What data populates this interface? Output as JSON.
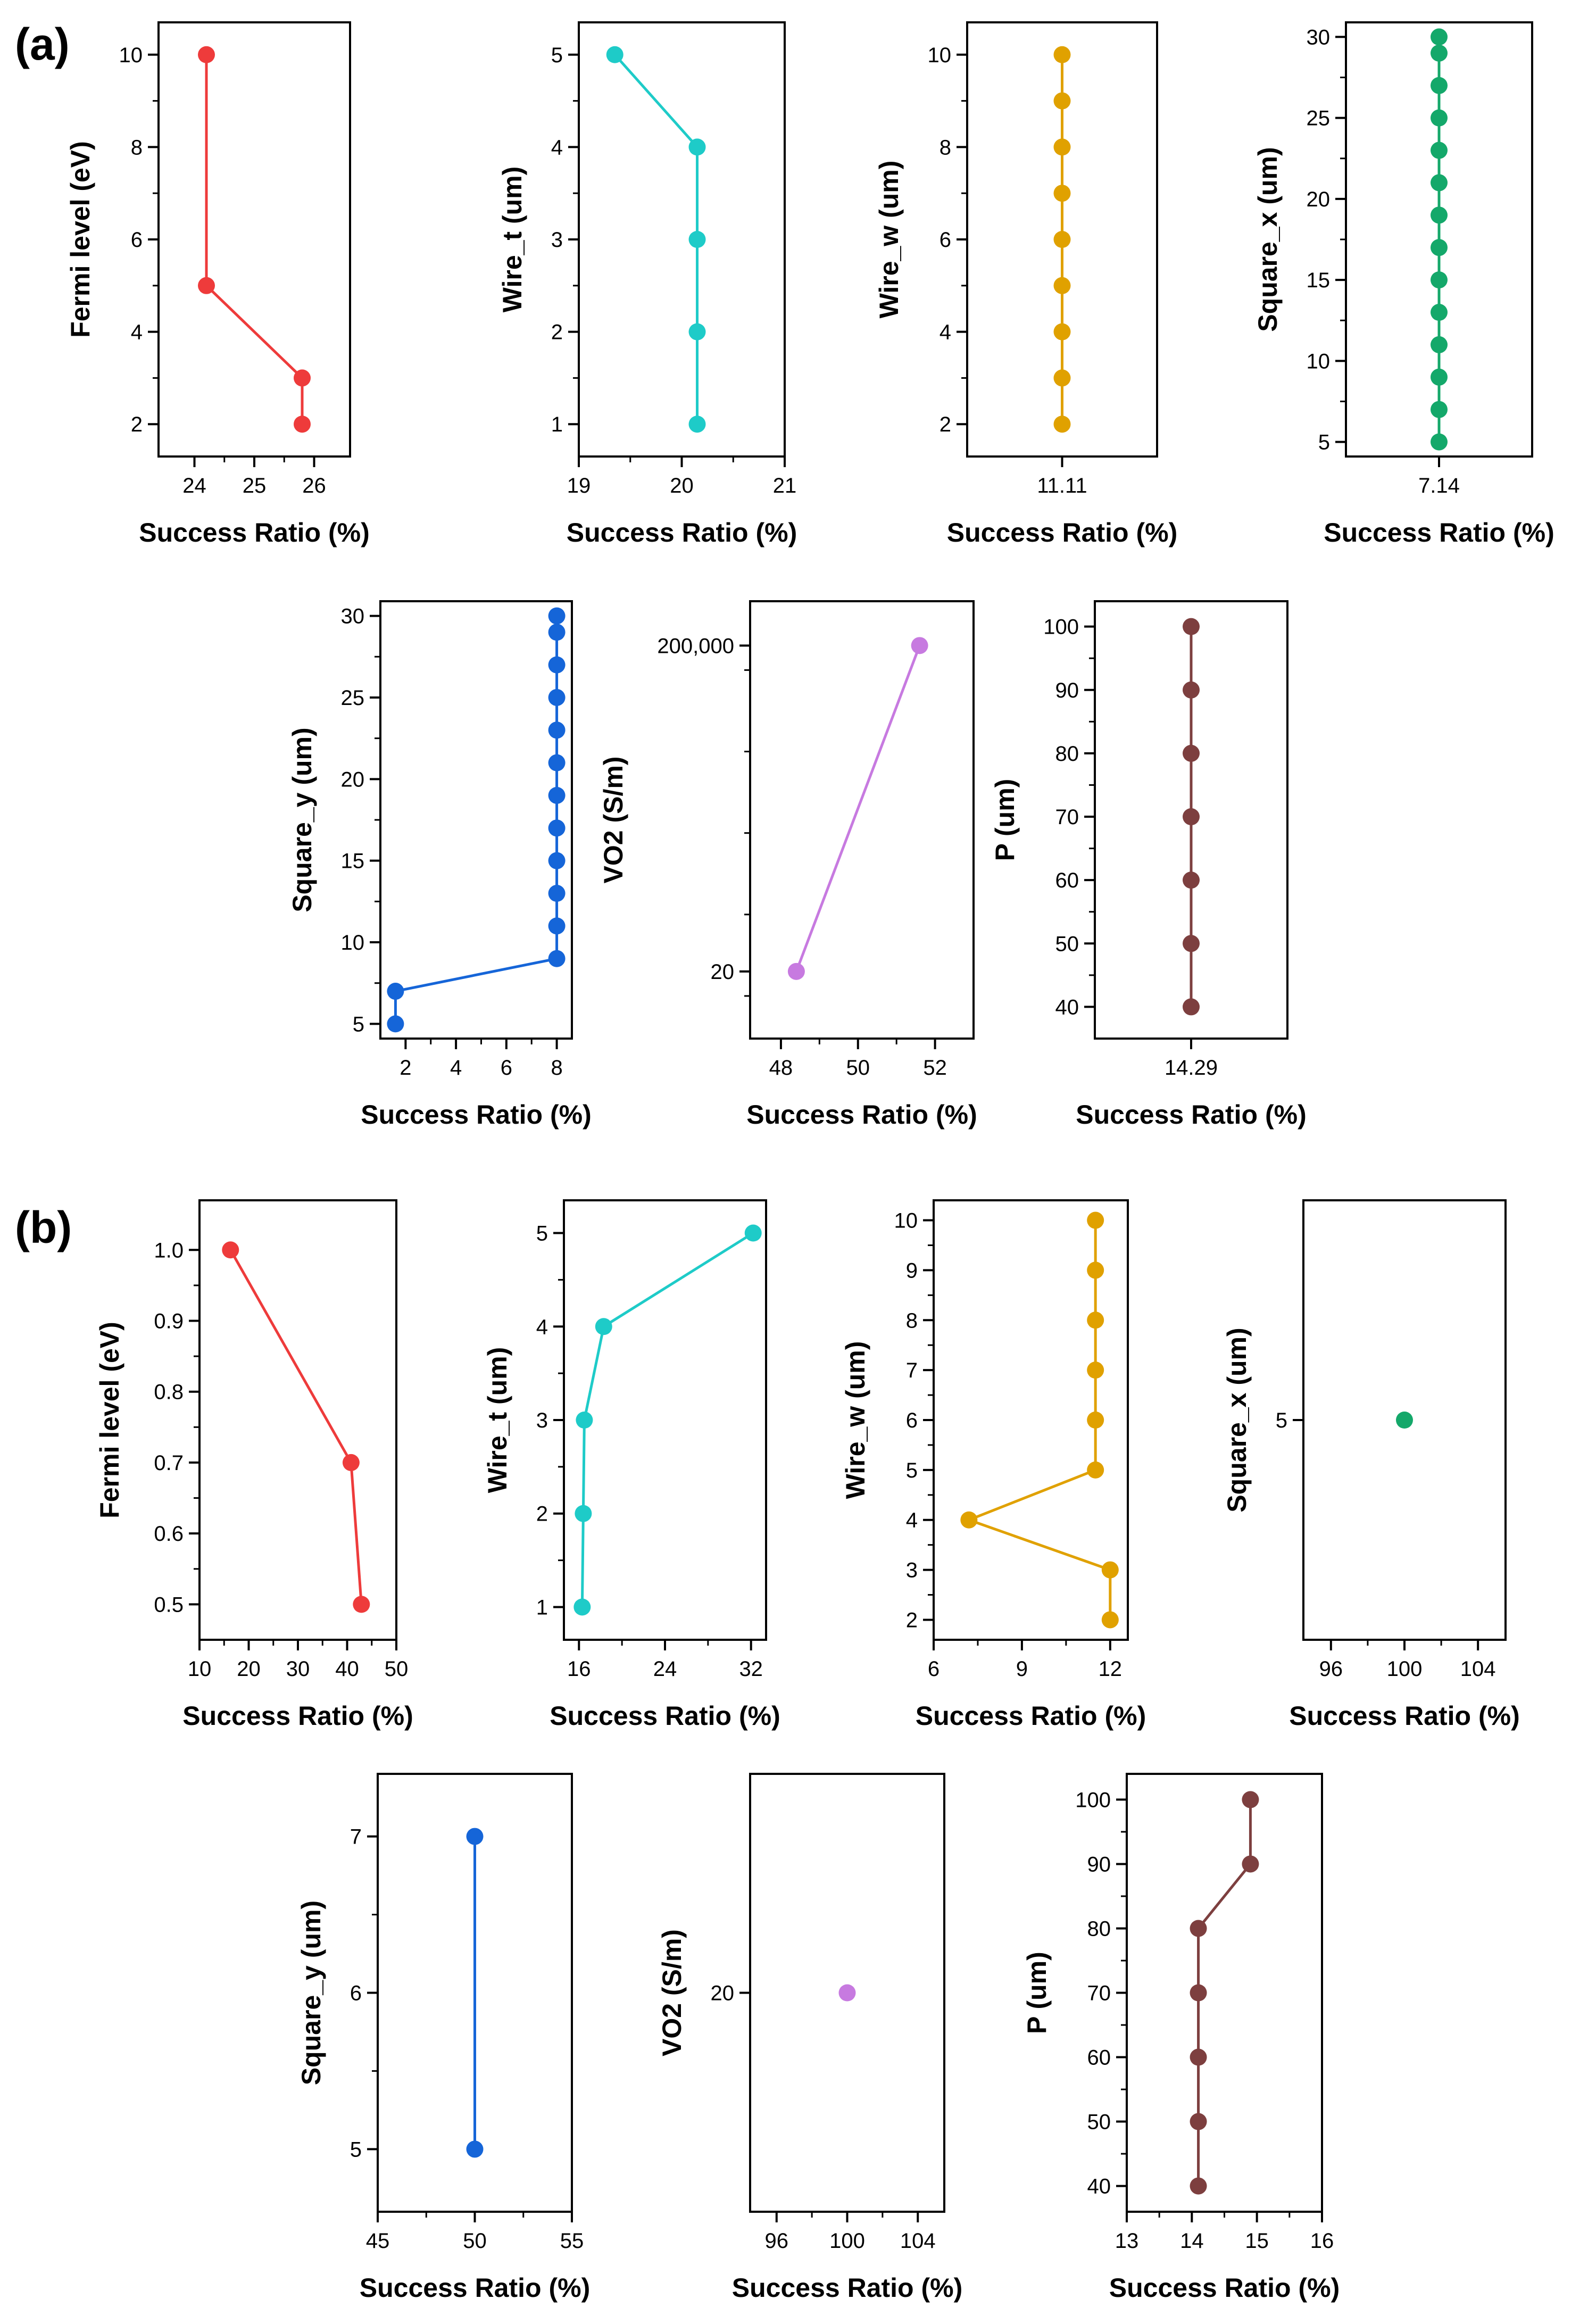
{
  "panels": [
    {
      "label": "(a)"
    },
    {
      "label": "(b)"
    }
  ],
  "chart_data": [
    {
      "type": "line",
      "panel": "(a)",
      "xlabel": "Success Ratio (%)",
      "ylabel": "Fermi level (eV)",
      "color": "#ee3b3b",
      "xlim": [
        23.4,
        26.6
      ],
      "xticks": [
        24,
        25,
        26
      ],
      "xtick_labels": [
        "24",
        "25",
        "26"
      ],
      "ylim": [
        1.3,
        10.7
      ],
      "yticks": [
        2,
        4,
        6,
        8,
        10
      ],
      "ytick_labels": [
        "2",
        "4",
        "6",
        "8",
        "10"
      ],
      "x": [
        24.2,
        24.2,
        25.8,
        25.8
      ],
      "y": [
        10,
        5,
        3,
        2
      ]
    },
    {
      "type": "line",
      "panel": "(a)",
      "xlabel": "Success Ratio (%)",
      "ylabel": "Wire_t (um)",
      "color": "#1ecbc8",
      "xlim": [
        19,
        21
      ],
      "xticks": [
        19,
        20,
        21
      ],
      "xtick_labels": [
        "19",
        "20",
        "21"
      ],
      "ylim": [
        0.65,
        5.35
      ],
      "yticks": [
        1,
        2,
        3,
        4,
        5
      ],
      "ytick_labels": [
        "1",
        "2",
        "3",
        "4",
        "5"
      ],
      "x": [
        19.35,
        20.15,
        20.15,
        20.15,
        20.15
      ],
      "y": [
        5,
        4,
        3,
        2,
        1
      ]
    },
    {
      "type": "line",
      "panel": "(a)",
      "xlabel": "Success Ratio (%)",
      "ylabel": "Wire_w (um)",
      "color": "#e0a100",
      "xlim": [
        10.11,
        12.11
      ],
      "xticks": [
        11.11
      ],
      "xtick_labels": [
        "11.11"
      ],
      "ylim": [
        1.3,
        10.7
      ],
      "yticks": [
        2,
        4,
        6,
        8,
        10
      ],
      "ytick_labels": [
        "2",
        "4",
        "6",
        "8",
        "10"
      ],
      "x": [
        11.11,
        11.11,
        11.11,
        11.11,
        11.11,
        11.11,
        11.11,
        11.11,
        11.11
      ],
      "y": [
        10,
        9,
        8,
        7,
        6,
        5,
        4,
        3,
        2
      ]
    },
    {
      "type": "line",
      "panel": "(a)",
      "xlabel": "Success Ratio (%)",
      "ylabel": "Square_x (um)",
      "color": "#14a86a",
      "xlim": [
        6.14,
        8.14
      ],
      "xticks": [
        7.14
      ],
      "xtick_labels": [
        "7.14"
      ],
      "ylim": [
        4.1,
        30.9
      ],
      "yticks": [
        5,
        10,
        15,
        20,
        25,
        30
      ],
      "ytick_labels": [
        "5",
        "10",
        "15",
        "20",
        "25",
        "30"
      ],
      "x": [
        7.14,
        7.14,
        7.14,
        7.14,
        7.14,
        7.14,
        7.14,
        7.14,
        7.14,
        7.14,
        7.14,
        7.14,
        7.14,
        7.14
      ],
      "y": [
        30,
        29,
        27,
        25,
        23,
        21,
        19,
        17,
        15,
        13,
        11,
        9,
        7,
        5
      ]
    },
    {
      "type": "line",
      "panel": "(a)",
      "xlabel": "Success Ratio (%)",
      "ylabel": "Square_y (um)",
      "color": "#1565d8",
      "xlim": [
        1.0,
        8.6
      ],
      "xticks": [
        2,
        4,
        6,
        8
      ],
      "xtick_labels": [
        "2",
        "4",
        "6",
        "8"
      ],
      "ylim": [
        4.1,
        30.9
      ],
      "yticks": [
        5,
        10,
        15,
        20,
        25,
        30
      ],
      "ytick_labels": [
        "5",
        "10",
        "15",
        "20",
        "25",
        "30"
      ],
      "x": [
        8.0,
        8.0,
        8.0,
        8.0,
        8.0,
        8.0,
        8.0,
        8.0,
        8.0,
        8.0,
        8.0,
        8.0,
        1.6,
        1.6
      ],
      "y": [
        30,
        29,
        27,
        25,
        23,
        21,
        19,
        17,
        15,
        13,
        11,
        9,
        7,
        5
      ]
    },
    {
      "type": "line",
      "panel": "(a)",
      "xlabel": "Success Ratio (%)",
      "ylabel": "VO2 (S/m)",
      "color": "#c77ae0",
      "yscale": "log",
      "xlim": [
        47.2,
        53.0
      ],
      "xticks": [
        48,
        50,
        52
      ],
      "xtick_labels": [
        "48",
        "50",
        "52"
      ],
      "ylim": [
        3.0,
        700000
      ],
      "yticks": [
        20,
        200000
      ],
      "ytick_labels": [
        "20",
        "200,000"
      ],
      "x": [
        48.4,
        51.6
      ],
      "y": [
        20,
        200000
      ]
    },
    {
      "type": "line",
      "panel": "(a)",
      "xlabel": "Success Ratio (%)",
      "ylabel": "P (um)",
      "color": "#7d3f3f",
      "xlim": [
        13.29,
        15.29
      ],
      "xticks": [
        14.29
      ],
      "xtick_labels": [
        "14.29"
      ],
      "ylim": [
        35,
        104
      ],
      "yticks": [
        40,
        50,
        60,
        70,
        80,
        90,
        100
      ],
      "ytick_labels": [
        "40",
        "50",
        "60",
        "70",
        "80",
        "90",
        "100"
      ],
      "x": [
        14.29,
        14.29,
        14.29,
        14.29,
        14.29,
        14.29,
        14.29
      ],
      "y": [
        100,
        90,
        80,
        70,
        60,
        50,
        40
      ]
    },
    {
      "type": "line",
      "panel": "(b)",
      "xlabel": "Success Ratio (%)",
      "ylabel": "Fermi level (eV)",
      "color": "#ee3b3b",
      "xlim": [
        10,
        50
      ],
      "xticks": [
        10,
        20,
        30,
        40,
        50
      ],
      "xtick_labels": [
        "10",
        "20",
        "30",
        "40",
        "50"
      ],
      "ylim": [
        0.45,
        1.07
      ],
      "yticks": [
        0.5,
        0.6,
        0.7,
        0.8,
        0.9,
        1.0
      ],
      "ytick_labels": [
        "0.5",
        "0.6",
        "0.7",
        "0.8",
        "0.9",
        "1.0"
      ],
      "x": [
        16.3,
        40.8,
        42.9
      ],
      "y": [
        1.0,
        0.7,
        0.5
      ]
    },
    {
      "type": "line",
      "panel": "(b)",
      "xlabel": "Success Ratio (%)",
      "ylabel": "Wire_t (um)",
      "color": "#1ecbc8",
      "xlim": [
        14.6,
        33.4
      ],
      "xticks": [
        16,
        24,
        32
      ],
      "xtick_labels": [
        "16",
        "24",
        "32"
      ],
      "ylim": [
        0.65,
        5.35
      ],
      "yticks": [
        1,
        2,
        3,
        4,
        5
      ],
      "ytick_labels": [
        "1",
        "2",
        "3",
        "4",
        "5"
      ],
      "x": [
        32.2,
        18.3,
        16.5,
        16.4,
        16.3
      ],
      "y": [
        5,
        4,
        3,
        2,
        1
      ]
    },
    {
      "type": "line",
      "panel": "(b)",
      "xlabel": "Success Ratio (%)",
      "ylabel": "Wire_w (um)",
      "color": "#e0a100",
      "xlim": [
        6,
        12.6
      ],
      "xticks": [
        6,
        9,
        12
      ],
      "xtick_labels": [
        "6",
        "9",
        "12"
      ],
      "ylim": [
        1.6,
        10.4
      ],
      "yticks": [
        2,
        3,
        4,
        5,
        6,
        7,
        8,
        9,
        10
      ],
      "ytick_labels": [
        "2",
        "3",
        "4",
        "5",
        "6",
        "7",
        "8",
        "9",
        "10"
      ],
      "x": [
        11.5,
        11.5,
        11.5,
        11.5,
        11.5,
        11.5,
        7.2,
        12.0,
        12.0
      ],
      "y": [
        10,
        9,
        8,
        7,
        6,
        5,
        4,
        3,
        2
      ]
    },
    {
      "type": "scatter",
      "panel": "(b)",
      "xlabel": "Success Ratio (%)",
      "ylabel": "Square_x (um)",
      "color": "#14a86a",
      "xlim": [
        94.5,
        105.5
      ],
      "xticks": [
        96,
        100,
        104
      ],
      "xtick_labels": [
        "96",
        "100",
        "104"
      ],
      "ylim": [
        4.0,
        6.0
      ],
      "yticks": [
        5
      ],
      "ytick_labels": [
        "5"
      ],
      "x": [
        100
      ],
      "y": [
        5
      ]
    },
    {
      "type": "line",
      "panel": "(b)",
      "xlabel": "Success Ratio (%)",
      "ylabel": "Square_y (um)",
      "color": "#1565d8",
      "xlim": [
        45,
        55
      ],
      "xticks": [
        45,
        50,
        55
      ],
      "xtick_labels": [
        "45",
        "50",
        "55"
      ],
      "ylim": [
        4.6,
        7.4
      ],
      "yticks": [
        5,
        6,
        7
      ],
      "ytick_labels": [
        "5",
        "6",
        "7"
      ],
      "x": [
        50,
        50
      ],
      "y": [
        7,
        5
      ]
    },
    {
      "type": "scatter",
      "panel": "(b)",
      "xlabel": "Success Ratio (%)",
      "ylabel": "VO2 (S/m)",
      "color": "#c77ae0",
      "xlim": [
        94.5,
        105.5
      ],
      "xticks": [
        96,
        100,
        104
      ],
      "xtick_labels": [
        "96",
        "100",
        "104"
      ],
      "ylim": [
        19.0,
        21.0
      ],
      "yticks": [
        20
      ],
      "ytick_labels": [
        "20"
      ],
      "x": [
        100
      ],
      "y": [
        20
      ]
    },
    {
      "type": "line",
      "panel": "(b)",
      "xlabel": "Success Ratio (%)",
      "ylabel": "P (um)",
      "color": "#7d3f3f",
      "xlim": [
        13,
        16
      ],
      "xticks": [
        13,
        14,
        15,
        16
      ],
      "xtick_labels": [
        "13",
        "14",
        "15",
        "16"
      ],
      "ylim": [
        36,
        104
      ],
      "yticks": [
        40,
        50,
        60,
        70,
        80,
        90,
        100
      ],
      "ytick_labels": [
        "40",
        "50",
        "60",
        "70",
        "80",
        "90",
        "100"
      ],
      "x": [
        14.9,
        14.9,
        14.1,
        14.1,
        14.1,
        14.1,
        14.1
      ],
      "y": [
        100,
        90,
        80,
        70,
        60,
        50,
        40
      ]
    }
  ]
}
